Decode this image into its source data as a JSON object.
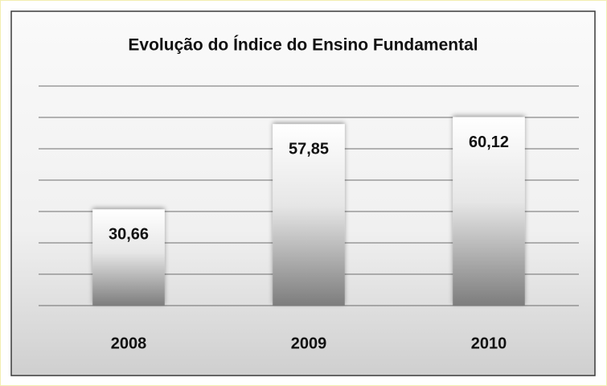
{
  "chart_data": {
    "type": "bar",
    "title": "Evolução do Índice do Ensino Fundamental",
    "categories": [
      "2008",
      "2009",
      "2010"
    ],
    "values": [
      30.66,
      57.85,
      60.12
    ],
    "value_labels": [
      "30,66",
      "57,85",
      "60,12"
    ],
    "color": "#8c8c8c",
    "ylim": [
      0,
      70
    ],
    "yticks": [
      0,
      10,
      20,
      30,
      40,
      50,
      60,
      70
    ],
    "grid": true
  }
}
